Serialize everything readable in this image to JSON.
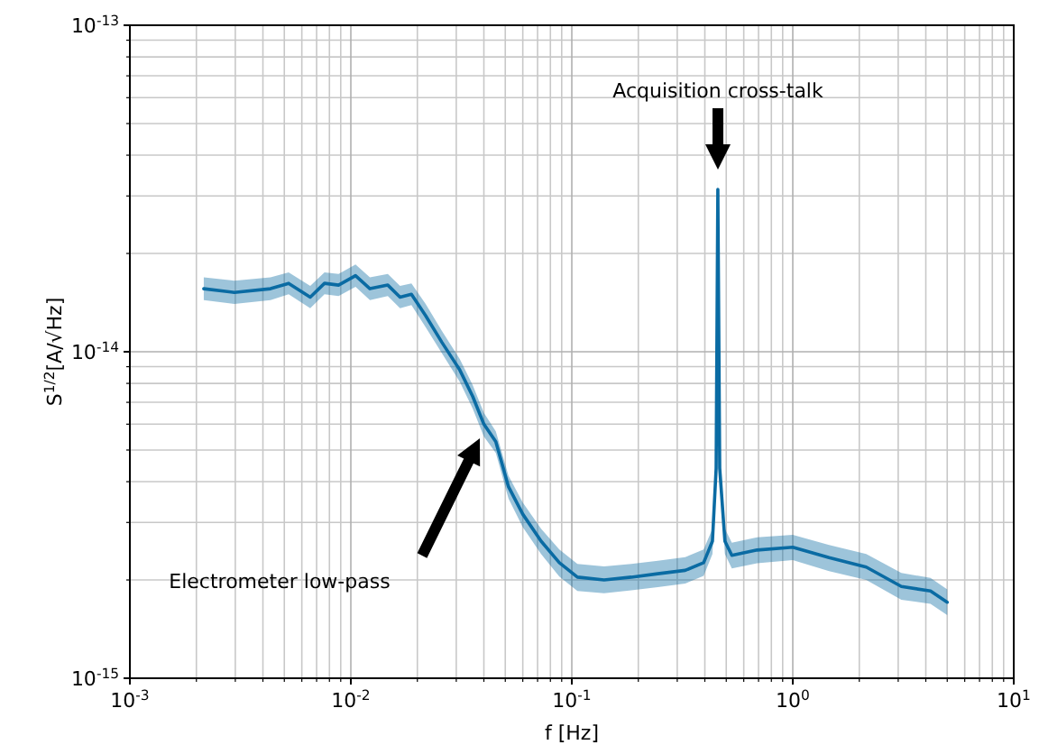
{
  "chart_data": {
    "type": "line",
    "xlabel": "f [Hz]",
    "ylabel": "S$^{1/2}$[A/√Hz]",
    "log": "xy",
    "grid": true,
    "marker": "none",
    "line_style": "solid",
    "xlim": [
      0.001,
      10
    ],
    "ylim": [
      1e-15,
      1e-13
    ],
    "xticks": [
      {
        "value": 0.001,
        "label": "10$^{-3}$"
      },
      {
        "value": 0.01,
        "label": "10$^{-2}$"
      },
      {
        "value": 0.1,
        "label": "10$^{-1}$"
      },
      {
        "value": 1,
        "label": "10$^{0}$"
      },
      {
        "value": 10,
        "label": "10$^{1}$"
      }
    ],
    "yticks": [
      {
        "value": 1e-15,
        "label": "10$^{-15}$"
      },
      {
        "value": 1e-14,
        "label": "10$^{-14}$"
      },
      {
        "value": 1e-13,
        "label": "10$^{-13}$"
      }
    ],
    "series": [
      {
        "color": "#0a6ba3",
        "x": [
          0.00216,
          0.00297,
          0.00433,
          0.00523,
          0.00655,
          0.0076,
          0.0088,
          0.0105,
          0.0122,
          0.0147,
          0.0167,
          0.0188,
          0.0218,
          0.0258,
          0.0311,
          0.0356,
          0.04,
          0.0453,
          0.0517,
          0.06,
          0.0726,
          0.0878,
          0.106,
          0.14,
          0.186,
          0.245,
          0.326,
          0.395,
          0.433,
          0.45,
          0.458,
          0.467,
          0.493,
          0.53,
          0.69,
          1.0,
          1.46,
          2.15,
          3.1,
          4.2,
          5.0
        ],
        "values": [
          1.56e-14,
          1.52e-14,
          1.56e-14,
          1.62e-14,
          1.47e-14,
          1.62e-14,
          1.6e-14,
          1.71e-14,
          1.56e-14,
          1.6e-14,
          1.47e-14,
          1.5e-14,
          1.29e-14,
          1.07e-14,
          8.8e-15,
          7.3e-15,
          6e-15,
          5.3e-15,
          3.86e-15,
          3.18e-15,
          2.63e-15,
          2.26e-15,
          2.04e-15,
          2e-15,
          2.04e-15,
          2.09e-15,
          2.14e-15,
          2.26e-15,
          2.63e-15,
          4.4e-15,
          3.14e-14,
          4.4e-15,
          2.63e-15,
          2.38e-15,
          2.47e-15,
          2.52e-15,
          2.34e-15,
          2.19e-15,
          1.91e-15,
          1.85e-15,
          1.71e-15
        ],
        "lower": [
          1.44e-14,
          1.4e-14,
          1.44e-14,
          1.5e-14,
          1.36e-14,
          1.5e-14,
          1.48e-14,
          1.58e-14,
          1.44e-14,
          1.48e-14,
          1.36e-14,
          1.39e-14,
          1.19e-14,
          9.9e-15,
          8.1e-15,
          6.7e-15,
          5.5e-15,
          4.9e-15,
          3.55e-15,
          2.9e-15,
          2.4e-15,
          2.05e-15,
          1.85e-15,
          1.82e-15,
          1.86e-15,
          1.9e-15,
          1.95e-15,
          2.06e-15,
          2.4e-15,
          4e-15,
          2.9e-14,
          4e-15,
          2.4e-15,
          2.17e-15,
          2.25e-15,
          2.3e-15,
          2.13e-15,
          2e-15,
          1.74e-15,
          1.69e-15,
          1.56e-15
        ],
        "upper": [
          1.69e-14,
          1.65e-14,
          1.69e-14,
          1.75e-14,
          1.59e-14,
          1.75e-14,
          1.73e-14,
          1.85e-14,
          1.69e-14,
          1.73e-14,
          1.59e-14,
          1.62e-14,
          1.4e-14,
          1.16e-14,
          9.5e-15,
          7.9e-15,
          6.5e-15,
          5.7e-15,
          4.17e-15,
          3.45e-15,
          2.87e-15,
          2.48e-15,
          2.24e-15,
          2.2e-15,
          2.24e-15,
          2.29e-15,
          2.35e-15,
          2.48e-15,
          2.87e-15,
          4.8e-15,
          3.4e-14,
          4.8e-15,
          2.87e-15,
          2.6e-15,
          2.7e-15,
          2.75e-15,
          2.56e-15,
          2.4e-15,
          2.1e-15,
          2.03e-15,
          1.87e-15
        ]
      }
    ],
    "annotations": [
      "Acquisition cross-talk",
      "Electrometer low-pass"
    ]
  }
}
